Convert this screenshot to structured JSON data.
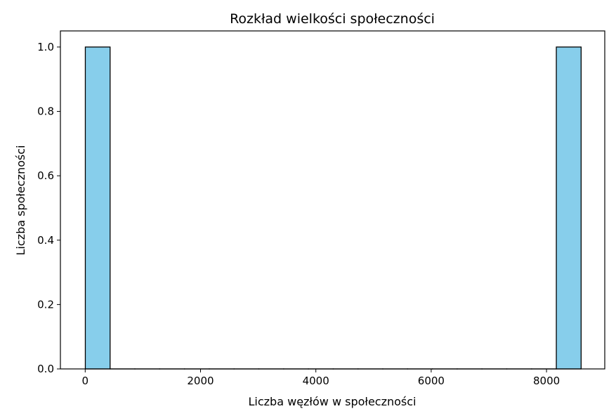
{
  "chart_data": {
    "type": "bar",
    "title": "Rozkład wielkości społeczności",
    "xlabel": "Liczba węzłów w społeczności",
    "ylabel": "Liczba społeczności",
    "xlim": [
      -430,
      9010
    ],
    "ylim": [
      0,
      1.05
    ],
    "xticks": [
      0,
      2000,
      4000,
      6000,
      8000
    ],
    "yticks": [
      0.0,
      0.2,
      0.4,
      0.6,
      0.8,
      1.0
    ],
    "xtick_labels": [
      "0",
      "2000",
      "4000",
      "6000",
      "8000"
    ],
    "ytick_labels": [
      "0.0",
      "0.2",
      "0.4",
      "0.6",
      "0.8",
      "1.0"
    ],
    "bins": {
      "start": 2,
      "end": 8600,
      "count": 20
    },
    "values": [
      1,
      0,
      0,
      0,
      0,
      0,
      0,
      0,
      0,
      0,
      0,
      0,
      0,
      0,
      0,
      0,
      0,
      0,
      0,
      1
    ],
    "bar_color": "#87ceeb",
    "edge_color": "#000000",
    "grid": false
  }
}
